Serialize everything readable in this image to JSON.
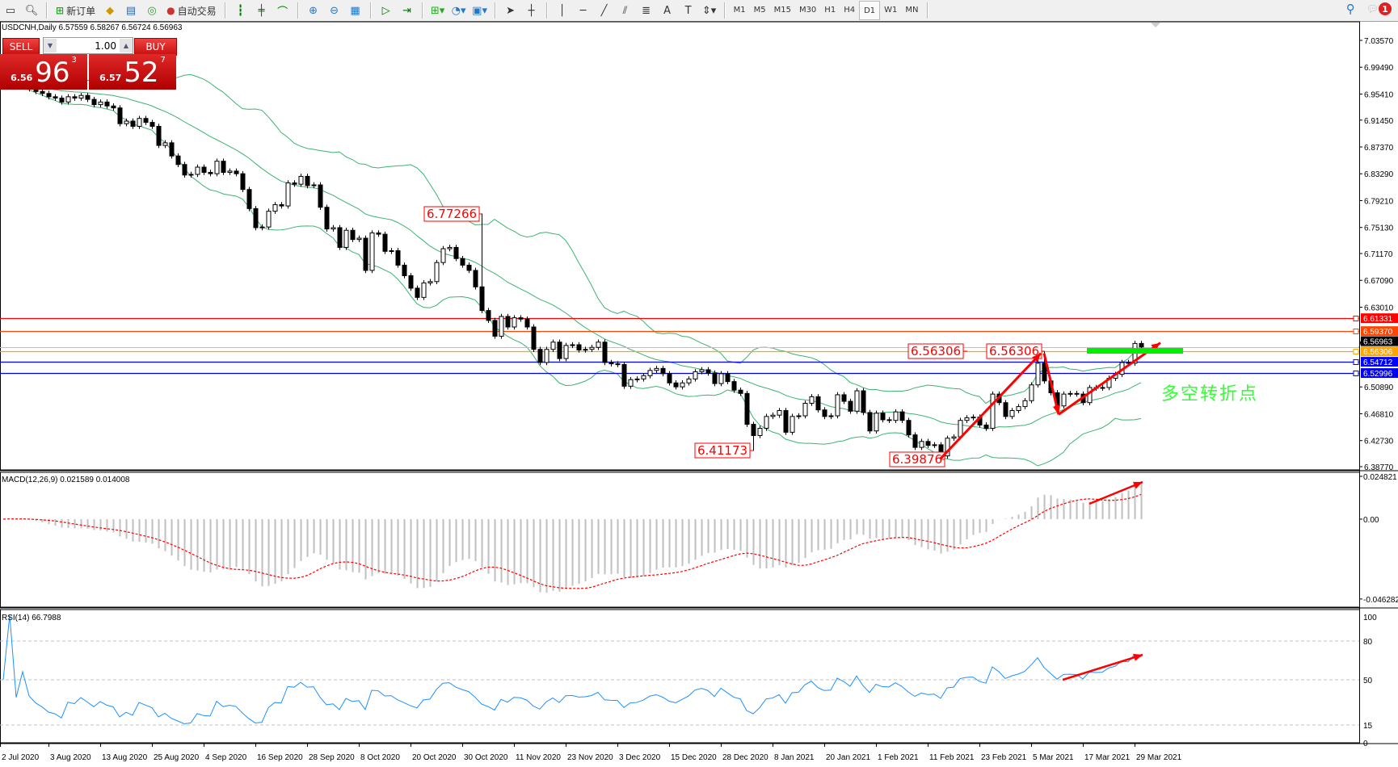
{
  "toolbar": {
    "new_order": "新订单",
    "auto_trading": "自动交易",
    "icons": [
      "new-chart-icon",
      "zoom-window-icon",
      "new-order-icon",
      "market-watch-icon",
      "navigator-icon",
      "signals-icon",
      "auto-trading-icon",
      "bar-chart-icon",
      "candlestick-icon",
      "line-chart-icon",
      "zoom-in-icon",
      "zoom-out-icon",
      "tile-windows-icon",
      "auto-scroll-icon",
      "chart-shift-icon",
      "indicators-icon",
      "periodicity-icon",
      "templates-icon",
      "cursor-icon",
      "crosshair-icon",
      "vertical-line-icon",
      "horizontal-line-icon",
      "trendline-icon",
      "channel-icon",
      "fibonacci-icon",
      "text-icon",
      "text-label-icon",
      "arrows-icon"
    ],
    "timeframes": [
      "M1",
      "M5",
      "M15",
      "M30",
      "H1",
      "H4",
      "D1",
      "W1",
      "MN"
    ],
    "active_timeframe": "D1",
    "notification_count": "1"
  },
  "chart": {
    "symbol_line": "USDCNH,Daily  6.57559 6.58267 6.56724 6.56963",
    "trade_panel": {
      "sell_label": "SELL",
      "buy_label": "BUY",
      "lot": "1.00",
      "sell_price": {
        "small": "6.56",
        "big": "96",
        "pip": "3"
      },
      "buy_price": {
        "small": "6.57",
        "big": "52",
        "pip": "7"
      }
    },
    "annotation_text": "多空转折点",
    "annotation_color": "#33ff33"
  },
  "chart_data": {
    "type": "candlestick",
    "symbol": "USDCNH",
    "timeframe": "Daily",
    "closes": [
      6.968,
      6.972,
      6.965,
      6.97,
      6.962,
      6.958,
      6.955,
      6.95,
      6.948,
      6.942,
      6.95,
      6.948,
      6.952,
      6.946,
      6.938,
      6.942,
      6.936,
      6.933,
      6.909,
      6.913,
      6.905,
      6.917,
      6.911,
      6.905,
      6.876,
      6.88,
      6.86,
      6.847,
      6.831,
      6.832,
      6.843,
      6.835,
      6.833,
      6.852,
      6.835,
      6.837,
      6.833,
      6.809,
      6.78,
      6.751,
      6.752,
      6.776,
      6.786,
      6.784,
      6.819,
      6.817,
      6.829,
      6.815,
      6.816,
      6.782,
      6.749,
      6.751,
      6.721,
      6.747,
      6.733,
      6.735,
      6.686,
      6.743,
      6.741,
      6.715,
      6.716,
      6.694,
      6.678,
      6.659,
      6.645,
      6.667,
      6.669,
      6.698,
      6.719,
      6.721,
      6.704,
      6.694,
      6.686,
      6.661,
      6.625,
      6.61,
      6.586,
      6.616,
      6.6,
      6.614,
      6.612,
      6.6,
      6.566,
      6.546,
      6.566,
      6.577,
      6.552,
      6.572,
      6.573,
      6.565,
      6.566,
      6.569,
      6.577,
      6.546,
      6.544,
      6.543,
      6.51,
      6.52,
      6.521,
      6.526,
      6.534,
      6.537,
      6.529,
      6.515,
      6.509,
      6.515,
      6.521,
      6.532,
      6.535,
      6.53,
      6.514,
      6.529,
      6.517,
      6.504,
      6.499,
      6.452,
      6.435,
      6.446,
      6.464,
      6.466,
      6.473,
      6.44,
      6.464,
      6.465,
      6.484,
      6.494,
      6.474,
      6.464,
      6.465,
      6.497,
      6.487,
      6.472,
      6.503,
      6.47,
      6.442,
      6.469,
      6.459,
      6.458,
      6.471,
      6.458,
      6.436,
      6.417,
      6.426,
      6.42,
      6.421,
      6.404,
      6.431,
      6.433,
      6.458,
      6.462,
      6.463,
      6.451,
      6.446,
      6.498,
      6.485,
      6.464,
      6.473,
      6.479,
      6.488,
      6.512,
      6.545,
      6.518,
      6.5,
      6.48,
      6.498,
      6.499,
      6.498,
      6.485,
      6.508,
      6.507,
      6.508,
      6.522,
      6.528,
      6.546,
      6.545,
      6.575,
      6.56963
    ],
    "first_open": 6.965,
    "extremes": [
      {
        "bar": 75,
        "high": 6.77266,
        "label": "6.77266"
      },
      {
        "bar": 117,
        "low": 6.41173,
        "label": "6.41173"
      },
      {
        "bar": 146,
        "low": 6.39876,
        "label": "6.39876"
      },
      {
        "bar": 162,
        "high": 6.56306,
        "label": "6.56306"
      }
    ],
    "extra_label": "6.56306",
    "date_ticks": [
      "2 Jul 2020",
      "3 Aug 2020",
      "13 Aug 2020",
      "25 Aug 2020",
      "4 Sep 2020",
      "16 Sep 2020",
      "28 Sep 2020",
      "8 Oct 2020",
      "20 Oct 2020",
      "30 Oct 2020",
      "11 Nov 2020",
      "23 Nov 2020",
      "3 Dec 2020",
      "15 Dec 2020",
      "28 Dec 2020",
      "8 Jan 2021",
      "20 Jan 2021",
      "1 Feb 2021",
      "11 Feb 2021",
      "23 Feb 2021",
      "5 Mar 2021",
      "17 Mar 2021",
      "29 Mar 2021"
    ],
    "price_ticks": [
      "7.03570",
      "6.99490",
      "6.95410",
      "6.91450",
      "6.87370",
      "6.83290",
      "6.79210",
      "6.75130",
      "6.71170",
      "6.67090",
      "6.63010",
      "6.50890",
      "6.46810",
      "6.42730",
      "6.38770"
    ],
    "current_price": {
      "value": 6.56963,
      "label": "6.56963",
      "color": "#000000"
    },
    "horizontal_lines": [
      {
        "value": 6.61331,
        "label": "6.61331",
        "color": "#ff0000"
      },
      {
        "value": 6.5937,
        "label": "6.59370",
        "color": "#ff4500"
      },
      {
        "value": 6.56306,
        "label": "6.56306",
        "color": "#ffa500"
      },
      {
        "value": 6.54712,
        "label": "6.54712",
        "color": "#0000ff"
      },
      {
        "value": 6.52996,
        "label": "6.52996",
        "color": "#0000ee"
      }
    ],
    "bollinger": {
      "period": 20,
      "deviation": 2,
      "color": "#3cb371"
    },
    "macd": {
      "title": "MACD(12,26,9) 0.021589 0.014008",
      "fast": 12,
      "slow": 26,
      "signal": 9,
      "ylim": [
        -0.046282,
        0.024821
      ],
      "ticks": [
        "0.024821",
        "0.00",
        "-0.046282"
      ],
      "hist_color": "#c0c0c0",
      "signal_color": "#ff0000"
    },
    "rsi": {
      "title": "RSI(14) 66.7988",
      "period": 14,
      "ylim": [
        0,
        100
      ],
      "levels": [
        "80",
        "50",
        "15"
      ],
      "ticks": [
        "100",
        "0"
      ],
      "color": "#1e90ff"
    },
    "arrow_color": "#ff0000",
    "level_bar_color": "#00ee00"
  }
}
